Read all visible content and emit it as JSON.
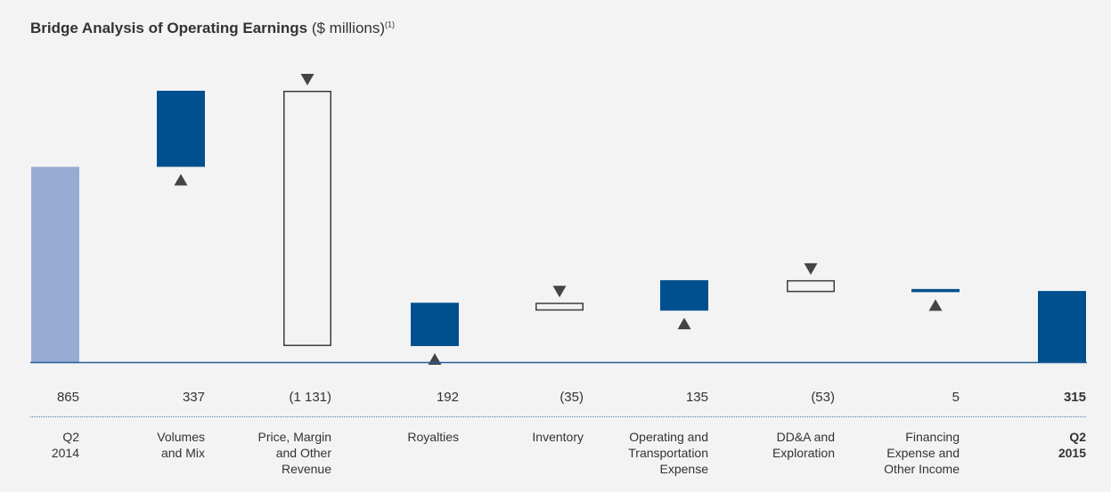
{
  "title": {
    "bold": "Bridge Analysis of Operating Earnings",
    "normal": "($ millions)",
    "footnote": "(1)"
  },
  "colors": {
    "start_bar": "#97abd3",
    "increase": "#00508f",
    "decrease_outline": "#3d3d3d",
    "end_bar": "#00508f",
    "baseline": "#1f5f99",
    "arrow": "#444444",
    "background": "#f3f3f3"
  },
  "chart_data": {
    "type": "bar",
    "subtype": "waterfall",
    "title": "Bridge Analysis of Operating Earnings ($ millions)",
    "categories": [
      "Q2 2014",
      "Volumes and Mix",
      "Price, Margin and Other Revenue",
      "Royalties",
      "Inventory",
      "Operating and Transportation Expense",
      "DD&A and Exploration",
      "Financing Expense and Other Income",
      "Q2 2015"
    ],
    "values": [
      865,
      337,
      -1131,
      192,
      -35,
      135,
      -53,
      5,
      315
    ],
    "value_labels": [
      "865",
      "337",
      "(1 131)",
      "192",
      "(35)",
      "135",
      "(53)",
      "5",
      "315"
    ],
    "bar_roles": [
      "total",
      "increase",
      "decrease",
      "increase",
      "decrease",
      "increase",
      "decrease",
      "increase",
      "total"
    ],
    "ylim": [
      0,
      1250
    ],
    "grid": false,
    "legend": "none"
  },
  "labels": {
    "values": [
      "865",
      "337",
      "(1 131)",
      "192",
      "(35)",
      "135",
      "(53)",
      "5",
      "315"
    ],
    "categories": [
      "Q2\n2014",
      "Volumes\nand Mix",
      "Price, Margin\nand Other\nRevenue",
      "Royalties",
      "Inventory",
      "Operating and\nTransportation\nExpense",
      "DD&A and\nExploration",
      "Financing\nExpense and\nOther Income",
      "Q2\n2015"
    ]
  }
}
